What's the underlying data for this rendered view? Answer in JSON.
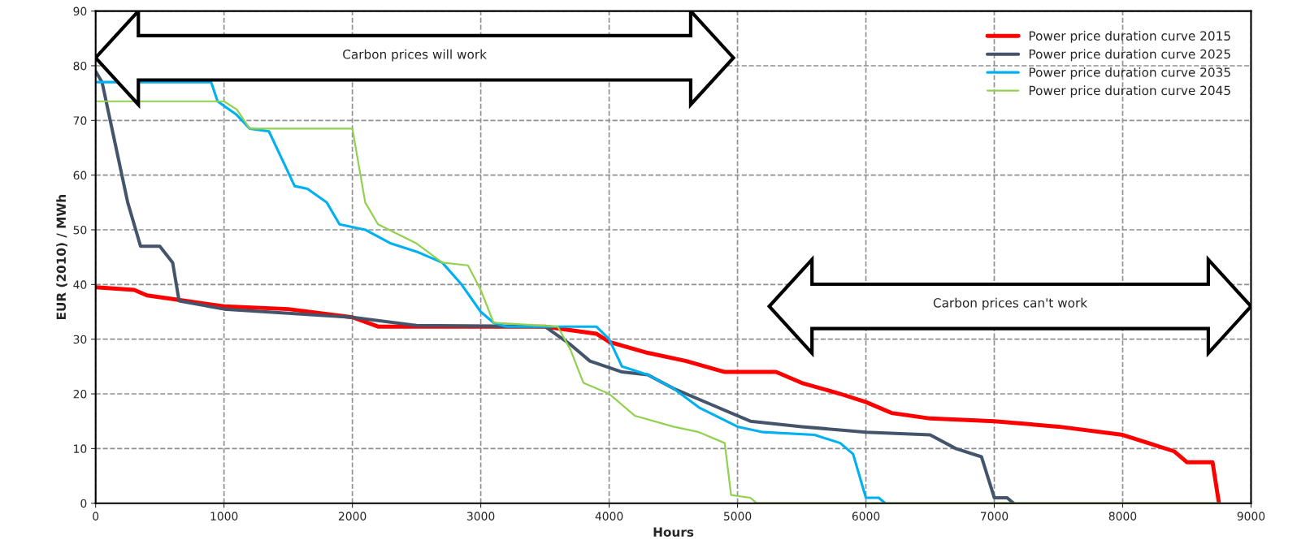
{
  "chart_data": {
    "type": "line",
    "xlabel": "Hours",
    "ylabel": "EUR (2010) / MWh",
    "xlim": [
      0,
      9000
    ],
    "ylim": [
      0,
      90
    ],
    "xticks": [
      0,
      1000,
      2000,
      3000,
      4000,
      5000,
      6000,
      7000,
      8000,
      9000
    ],
    "yticks": [
      0,
      10,
      20,
      30,
      40,
      50,
      60,
      70,
      80,
      90
    ],
    "grid": true,
    "legend": "top right",
    "line_style": "solid",
    "annotations": [
      "Carbon prices will work",
      "Carbon prices can't work"
    ],
    "series": [
      {
        "name": "Power price duration curve 2015",
        "color": "#ff0000",
        "x": [
          0,
          300,
          400,
          700,
          1000,
          1500,
          2000,
          2200,
          3500,
          3900,
          4000,
          4300,
          4600,
          4900,
          5300,
          5500,
          5800,
          6000,
          6200,
          6500,
          7000,
          7500,
          8000,
          8200,
          8400,
          8500,
          8700,
          8750
        ],
        "values": [
          39.5,
          39,
          38,
          37,
          36,
          35.5,
          34,
          32.3,
          32.3,
          31,
          29.5,
          27.5,
          26,
          24,
          24,
          22,
          20,
          18.5,
          16.5,
          15.5,
          15,
          14,
          12.5,
          11,
          9.5,
          7.5,
          7.5,
          0
        ]
      },
      {
        "name": "Power price duration curve 2025",
        "color": "#44546a",
        "x": [
          0,
          50,
          150,
          250,
          350,
          500,
          600,
          650,
          1000,
          2000,
          2500,
          3500,
          3700,
          3850,
          4100,
          4300,
          4500,
          4800,
          5100,
          5500,
          6000,
          6500,
          6700,
          6900,
          7000,
          7100,
          7150
        ],
        "values": [
          79,
          77,
          66,
          55,
          47,
          47,
          44,
          37,
          35.5,
          34,
          32.5,
          32.3,
          29,
          26,
          24,
          23.5,
          21,
          18,
          15,
          14,
          13,
          12.5,
          10,
          8.5,
          1,
          1,
          0
        ]
      },
      {
        "name": "Power price duration curve 2035",
        "color": "#00b0f0",
        "x": [
          0,
          900,
          950,
          1100,
          1200,
          1350,
          1450,
          1550,
          1650,
          1800,
          1900,
          2100,
          2300,
          2500,
          2700,
          2850,
          3000,
          3100,
          3200,
          3900,
          4000,
          4100,
          4300,
          4500,
          4700,
          5000,
          5200,
          5600,
          5800,
          5900,
          6000,
          6100,
          6150
        ],
        "values": [
          77,
          77,
          73.5,
          71,
          68.5,
          68,
          63,
          58,
          57.5,
          55,
          51,
          50,
          47.5,
          46,
          44,
          40,
          35,
          33,
          32.3,
          32.3,
          30,
          25,
          23.5,
          21,
          17.5,
          14,
          13,
          12.5,
          11,
          9,
          1,
          1,
          0
        ]
      },
      {
        "name": "Power price duration curve 2045",
        "color": "#92d050",
        "x": [
          0,
          1000,
          1100,
          1200,
          2000,
          2100,
          2200,
          2500,
          2700,
          2900,
          3000,
          3100,
          3600,
          3700,
          3800,
          4000,
          4200,
          4500,
          4700,
          4900,
          4950,
          5100,
          5150,
          8760
        ],
        "values": [
          73.5,
          73.5,
          72,
          68.5,
          68.5,
          55,
          51,
          47.5,
          44,
          43.5,
          39,
          33,
          32.3,
          28,
          22,
          20,
          16,
          14,
          13,
          11,
          1.5,
          1,
          0,
          0
        ]
      }
    ]
  }
}
